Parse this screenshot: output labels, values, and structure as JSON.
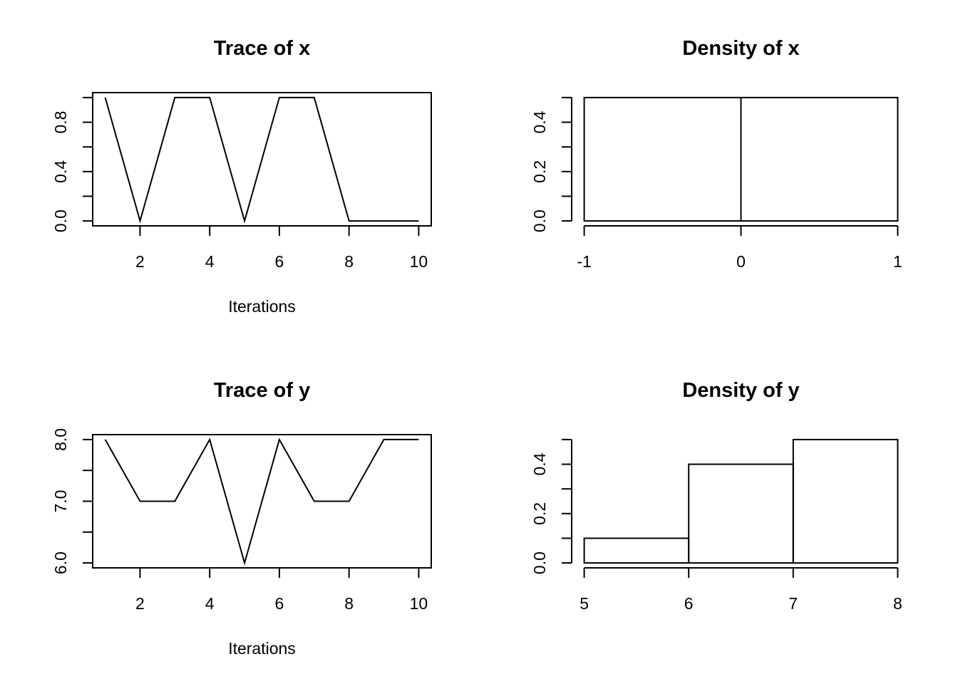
{
  "chart_data": [
    {
      "type": "line",
      "title": "Trace of x",
      "xlabel": "Iterations",
      "ylabel": "",
      "x": [
        1,
        2,
        3,
        4,
        5,
        6,
        7,
        8,
        9,
        10
      ],
      "series": [
        {
          "values": [
            1,
            0,
            1,
            1,
            0,
            1,
            1,
            0,
            0,
            0
          ]
        }
      ],
      "xlim": [
        0.64,
        10.36
      ],
      "ylim": [
        -0.04,
        1.04
      ],
      "xticks": [
        2,
        4,
        6,
        8,
        10
      ],
      "xtick_labels": [
        "2",
        "4",
        "6",
        "8",
        "10"
      ],
      "yticks": [
        0,
        0.2,
        0.4,
        0.6,
        0.8,
        1.0
      ],
      "ytick_labels": [
        "0.0",
        "",
        "0.4",
        "",
        "0.8",
        ""
      ],
      "box": true,
      "grid": false
    },
    {
      "type": "bar",
      "title": "Density of x",
      "xlabel": "",
      "ylabel": "",
      "bins": [
        {
          "from": -1,
          "to": 0,
          "density": 0.5
        },
        {
          "from": 0,
          "to": 1,
          "density": 0.5
        }
      ],
      "xlim": [
        -1.08,
        1.08
      ],
      "ylim": [
        -0.02,
        0.52
      ],
      "xticks": [
        -1,
        0,
        1
      ],
      "xtick_labels": [
        "-1",
        "0",
        "1"
      ],
      "yticks": [
        0,
        0.1,
        0.2,
        0.3,
        0.4,
        0.5
      ],
      "ytick_labels": [
        "0.0",
        "",
        "0.2",
        "",
        "0.4",
        ""
      ],
      "box": false,
      "grid": false
    },
    {
      "type": "line",
      "title": "Trace of y",
      "xlabel": "Iterations",
      "ylabel": "",
      "x": [
        1,
        2,
        3,
        4,
        5,
        6,
        7,
        8,
        9,
        10
      ],
      "series": [
        {
          "values": [
            8,
            7,
            7,
            8,
            6,
            8,
            7,
            7,
            8,
            8
          ]
        }
      ],
      "xlim": [
        0.64,
        10.36
      ],
      "ylim": [
        5.92,
        8.08
      ],
      "xticks": [
        2,
        4,
        6,
        8,
        10
      ],
      "xtick_labels": [
        "2",
        "4",
        "6",
        "8",
        "10"
      ],
      "yticks": [
        6.0,
        6.5,
        7.0,
        7.5,
        8.0
      ],
      "ytick_labels": [
        "6.0",
        "",
        "7.0",
        "",
        "8.0"
      ],
      "box": true,
      "grid": false
    },
    {
      "type": "bar",
      "title": "Density of y",
      "xlabel": "",
      "ylabel": "",
      "bins": [
        {
          "from": 5,
          "to": 6,
          "density": 0.1
        },
        {
          "from": 6,
          "to": 7,
          "density": 0.4
        },
        {
          "from": 7,
          "to": 8,
          "density": 0.5
        }
      ],
      "xlim": [
        4.88,
        8.12
      ],
      "ylim": [
        -0.02,
        0.52
      ],
      "xticks": [
        5,
        6,
        7,
        8
      ],
      "xtick_labels": [
        "5",
        "6",
        "7",
        "8"
      ],
      "yticks": [
        0,
        0.1,
        0.2,
        0.3,
        0.4,
        0.5
      ],
      "ytick_labels": [
        "0.0",
        "",
        "0.2",
        "",
        "0.4",
        ""
      ],
      "box": false,
      "grid": false
    }
  ]
}
